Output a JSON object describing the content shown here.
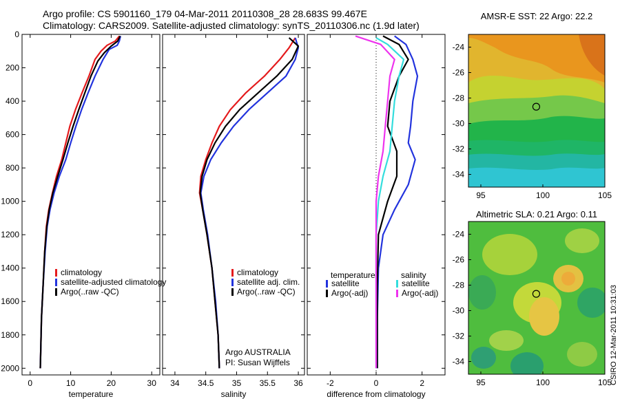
{
  "figure": {
    "title_line1": "Argo profile: CS 5901160_179 04-Mar-2011 20110308_28 28.683S 99.467E",
    "title_line2": "Climatology: CARS2009. Satellite-adjusted climatology: synTS_20110306.nc (1.9d later)",
    "credit_line1": "Argo AUSTRALIA",
    "credit_line2": "PI: Susan Wijffels",
    "timestamp": "CSIRO 12-Mar-2011 10:31:03"
  },
  "colors": {
    "climatology": "#e41a1c",
    "satellite": "#2233dd",
    "argo": "#000000",
    "sal_satellite": "#33dddd",
    "sal_argo": "#ee33ee"
  },
  "chart_data": [
    {
      "type": "line",
      "name": "temperature-profile",
      "xlabel": "temperature",
      "xlim": [
        -2,
        32
      ],
      "ylim": [
        2040,
        0
      ],
      "xticks": [
        0,
        10,
        20,
        30
      ],
      "yticks": [
        0,
        200,
        400,
        600,
        800,
        1000,
        1200,
        1400,
        1600,
        1800,
        2000
      ],
      "legend": [
        "climatology",
        "satellite-adjusted climatology",
        "Argo(..raw -QC)"
      ],
      "series": [
        {
          "name": "climatology",
          "color": "climatology",
          "points": [
            [
              22.0,
              10
            ],
            [
              21.0,
              40
            ],
            [
              19.0,
              65
            ],
            [
              17.5,
              100
            ],
            [
              16.0,
              150
            ],
            [
              14.5,
              250
            ],
            [
              12.8,
              350
            ],
            [
              11.2,
              450
            ],
            [
              9.8,
              550
            ],
            [
              8.8,
              650
            ],
            [
              7.8,
              750
            ],
            [
              6.5,
              850
            ],
            [
              5.5,
              950
            ],
            [
              4.6,
              1050
            ],
            [
              4.0,
              1150
            ],
            [
              3.6,
              1300
            ],
            [
              3.2,
              1500
            ],
            [
              2.8,
              1700
            ],
            [
              2.6,
              1900
            ],
            [
              2.5,
              2000
            ]
          ]
        },
        {
          "name": "satellite",
          "color": "satellite",
          "points": [
            [
              22.3,
              10
            ],
            [
              22.0,
              40
            ],
            [
              21.5,
              65
            ],
            [
              19.5,
              90
            ],
            [
              18.0,
              150
            ],
            [
              16.0,
              250
            ],
            [
              14.3,
              350
            ],
            [
              12.7,
              450
            ],
            [
              11.3,
              550
            ],
            [
              10.0,
              650
            ],
            [
              8.8,
              750
            ],
            [
              7.2,
              850
            ],
            [
              5.9,
              950
            ],
            [
              4.9,
              1050
            ],
            [
              4.2,
              1150
            ],
            [
              3.7,
              1300
            ],
            [
              3.2,
              1500
            ],
            [
              2.8,
              1700
            ],
            [
              2.6,
              1900
            ],
            [
              2.5,
              2000
            ]
          ]
        },
        {
          "name": "argo",
          "color": "argo",
          "points": [
            [
              22.2,
              10
            ],
            [
              21.6,
              40
            ],
            [
              20.0,
              70
            ],
            [
              18.3,
              110
            ],
            [
              16.7,
              160
            ],
            [
              15.0,
              250
            ],
            [
              13.5,
              350
            ],
            [
              12.0,
              450
            ],
            [
              10.6,
              550
            ],
            [
              9.3,
              650
            ],
            [
              8.1,
              750
            ],
            [
              6.8,
              850
            ],
            [
              5.6,
              950
            ],
            [
              4.7,
              1050
            ],
            [
              4.1,
              1150
            ],
            [
              3.6,
              1300
            ],
            [
              3.2,
              1500
            ],
            [
              2.8,
              1700
            ],
            [
              2.6,
              1900
            ],
            [
              2.5,
              2000
            ]
          ]
        }
      ]
    },
    {
      "type": "line",
      "name": "salinity-profile",
      "xlabel": "salinity",
      "xlim": [
        33.8,
        36.1
      ],
      "ylim": [
        2040,
        0
      ],
      "xticks": [
        34,
        34.5,
        35,
        35.5,
        36
      ],
      "xtick_labels": [
        "34",
        "34.5",
        "35",
        "35.5",
        "36"
      ],
      "legend": [
        "climatology",
        "satellite adj. clim.",
        "Argo(..raw -QC)"
      ],
      "series": [
        {
          "name": "climatology",
          "color": "climatology",
          "points": [
            [
              35.95,
              20
            ],
            [
              35.85,
              80
            ],
            [
              35.7,
              150
            ],
            [
              35.45,
              250
            ],
            [
              35.15,
              350
            ],
            [
              34.9,
              450
            ],
            [
              34.72,
              550
            ],
            [
              34.6,
              650
            ],
            [
              34.5,
              750
            ],
            [
              34.42,
              850
            ],
            [
              34.4,
              950
            ],
            [
              34.45,
              1050
            ],
            [
              34.52,
              1200
            ],
            [
              34.6,
              1400
            ],
            [
              34.65,
              1600
            ],
            [
              34.7,
              1800
            ],
            [
              34.72,
              2000
            ]
          ]
        },
        {
          "name": "satellite",
          "color": "satellite",
          "points": [
            [
              35.95,
              20
            ],
            [
              36.0,
              80
            ],
            [
              35.95,
              150
            ],
            [
              35.8,
              250
            ],
            [
              35.5,
              350
            ],
            [
              35.2,
              450
            ],
            [
              34.95,
              550
            ],
            [
              34.75,
              650
            ],
            [
              34.58,
              750
            ],
            [
              34.47,
              850
            ],
            [
              34.42,
              950
            ],
            [
              34.46,
              1050
            ],
            [
              34.53,
              1200
            ],
            [
              34.6,
              1400
            ],
            [
              34.66,
              1600
            ],
            [
              34.7,
              1800
            ],
            [
              34.72,
              2000
            ]
          ]
        },
        {
          "name": "argo",
          "color": "argo",
          "points": [
            [
              35.85,
              20
            ],
            [
              36.0,
              70
            ],
            [
              35.9,
              150
            ],
            [
              35.65,
              250
            ],
            [
              35.35,
              350
            ],
            [
              35.05,
              450
            ],
            [
              34.82,
              550
            ],
            [
              34.65,
              650
            ],
            [
              34.52,
              750
            ],
            [
              34.44,
              850
            ],
            [
              34.41,
              950
            ],
            [
              34.45,
              1050
            ],
            [
              34.52,
              1200
            ],
            [
              34.6,
              1400
            ],
            [
              34.65,
              1600
            ],
            [
              34.7,
              1800
            ],
            [
              34.72,
              2000
            ]
          ]
        }
      ]
    },
    {
      "type": "line",
      "name": "difference-profile",
      "xlabel": "difference from climatology",
      "xlim": [
        -3,
        3
      ],
      "ylim": [
        2040,
        0
      ],
      "xticks": [
        -2,
        0,
        2
      ],
      "legend_temperature_title": "temperature",
      "legend_salinity_title": "salinity",
      "legend_labels": [
        "satellite",
        "Argo(-adj)",
        "satellite",
        "Argo(-adj)"
      ],
      "series": [
        {
          "name": "temp-satellite",
          "color": "satellite",
          "points": [
            [
              0.8,
              10
            ],
            [
              1.3,
              60
            ],
            [
              1.6,
              150
            ],
            [
              1.8,
              250
            ],
            [
              1.6,
              400
            ],
            [
              1.5,
              550
            ],
            [
              1.4,
              650
            ],
            [
              1.7,
              750
            ],
            [
              1.4,
              900
            ],
            [
              0.8,
              1050
            ],
            [
              0.3,
              1200
            ],
            [
              0.1,
              1400
            ],
            [
              0.05,
              1700
            ],
            [
              0.05,
              2000
            ]
          ]
        },
        {
          "name": "temp-argo",
          "color": "argo",
          "points": [
            [
              0.3,
              10
            ],
            [
              1.0,
              60
            ],
            [
              1.4,
              150
            ],
            [
              1.0,
              250
            ],
            [
              0.6,
              400
            ],
            [
              0.5,
              550
            ],
            [
              0.9,
              700
            ],
            [
              0.9,
              850
            ],
            [
              0.5,
              1000
            ],
            [
              0.1,
              1200
            ],
            [
              0.05,
              1500
            ],
            [
              0.05,
              2000
            ]
          ]
        },
        {
          "name": "sal-satellite",
          "color": "sal_satellite",
          "points": [
            [
              0.0,
              20
            ],
            [
              0.5,
              60
            ],
            [
              1.2,
              150
            ],
            [
              1.0,
              250
            ],
            [
              0.8,
              400
            ],
            [
              0.7,
              550
            ],
            [
              0.6,
              700
            ],
            [
              0.3,
              850
            ],
            [
              0.1,
              1000
            ],
            [
              0.0,
              1200
            ],
            [
              0.0,
              1500
            ],
            [
              0.0,
              2000
            ]
          ]
        },
        {
          "name": "sal-argo",
          "color": "sal_argo",
          "points": [
            [
              -0.9,
              10
            ],
            [
              0.2,
              60
            ],
            [
              0.8,
              150
            ],
            [
              0.6,
              250
            ],
            [
              0.5,
              400
            ],
            [
              0.4,
              550
            ],
            [
              0.3,
              700
            ],
            [
              0.1,
              850
            ],
            [
              0.0,
              1000
            ],
            [
              0.0,
              1200
            ],
            [
              0.0,
              1500
            ],
            [
              0.0,
              2000
            ]
          ]
        }
      ]
    },
    {
      "type": "heatmap",
      "name": "sst-map",
      "title": "AMSR-E SST: 22 Argo: 22.2",
      "xlim": [
        94,
        105
      ],
      "ylim": [
        -35,
        -23
      ],
      "xticks": [
        95,
        100,
        105
      ],
      "yticks": [
        -24,
        -26,
        -28,
        -30,
        -32,
        -34
      ],
      "argo_position": [
        99.467,
        -28.683
      ]
    },
    {
      "type": "heatmap",
      "name": "sla-map",
      "title": "Altimetric SLA: 0.21 Argo: 0.11",
      "xlim": [
        94,
        105
      ],
      "ylim": [
        -35,
        -23
      ],
      "xticks": [
        95,
        100,
        105
      ],
      "yticks": [
        -24,
        -26,
        -28,
        -30,
        -32,
        -34
      ],
      "argo_position": [
        99.467,
        -28.683
      ]
    }
  ]
}
